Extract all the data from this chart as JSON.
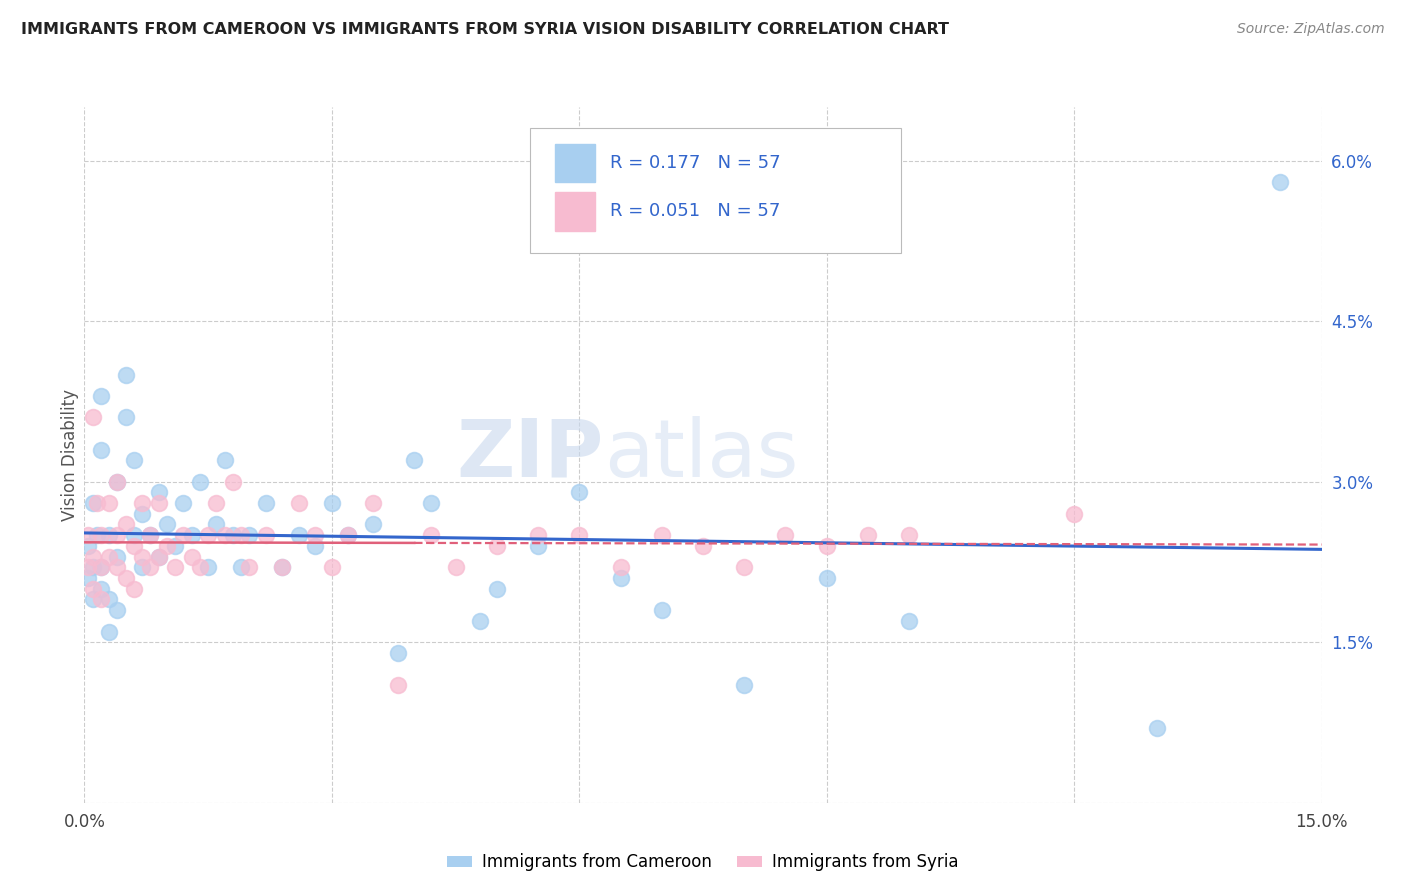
{
  "title": "IMMIGRANTS FROM CAMEROON VS IMMIGRANTS FROM SYRIA VISION DISABILITY CORRELATION CHART",
  "source": "Source: ZipAtlas.com",
  "ylabel": "Vision Disability",
  "xlim": [
    0.0,
    0.15
  ],
  "ylim": [
    0.0,
    0.065
  ],
  "xticks": [
    0.0,
    0.03,
    0.06,
    0.09,
    0.12,
    0.15
  ],
  "xticklabels": [
    "0.0%",
    "",
    "",
    "",
    "",
    "15.0%"
  ],
  "yticks": [
    0.0,
    0.015,
    0.03,
    0.045,
    0.06
  ],
  "yticklabels": [
    "",
    "1.5%",
    "3.0%",
    "4.5%",
    "6.0%"
  ],
  "r_cameroon": 0.177,
  "r_syria": 0.051,
  "n_cameroon": 57,
  "n_syria": 57,
  "color_cameroon": "#A8CFF0",
  "color_syria": "#F7BBD0",
  "line_color_cameroon": "#3366CC",
  "line_color_syria": "#E0607A",
  "grid_color": "#CCCCCC",
  "background_color": "#FFFFFF",
  "watermark": "ZIPatlas",
  "legend_label_cameroon": "Immigrants from Cameroon",
  "legend_label_syria": "Immigrants from Syria",
  "cameroon_x": [
    0.0005,
    0.0005,
    0.001,
    0.001,
    0.001,
    0.0015,
    0.002,
    0.002,
    0.002,
    0.002,
    0.003,
    0.003,
    0.003,
    0.004,
    0.004,
    0.004,
    0.005,
    0.005,
    0.006,
    0.006,
    0.007,
    0.007,
    0.008,
    0.009,
    0.009,
    0.01,
    0.011,
    0.012,
    0.013,
    0.014,
    0.015,
    0.016,
    0.017,
    0.018,
    0.019,
    0.02,
    0.022,
    0.024,
    0.026,
    0.028,
    0.03,
    0.032,
    0.035,
    0.038,
    0.04,
    0.042,
    0.048,
    0.05,
    0.055,
    0.06,
    0.065,
    0.07,
    0.08,
    0.09,
    0.1,
    0.13,
    0.145
  ],
  "cameroon_y": [
    0.024,
    0.021,
    0.028,
    0.022,
    0.019,
    0.025,
    0.038,
    0.033,
    0.022,
    0.02,
    0.025,
    0.019,
    0.016,
    0.03,
    0.023,
    0.018,
    0.04,
    0.036,
    0.032,
    0.025,
    0.027,
    0.022,
    0.025,
    0.029,
    0.023,
    0.026,
    0.024,
    0.028,
    0.025,
    0.03,
    0.022,
    0.026,
    0.032,
    0.025,
    0.022,
    0.025,
    0.028,
    0.022,
    0.025,
    0.024,
    0.028,
    0.025,
    0.026,
    0.014,
    0.032,
    0.028,
    0.017,
    0.02,
    0.024,
    0.029,
    0.021,
    0.018,
    0.011,
    0.021,
    0.017,
    0.007,
    0.058
  ],
  "syria_x": [
    0.0005,
    0.0005,
    0.001,
    0.001,
    0.001,
    0.0015,
    0.002,
    0.002,
    0.002,
    0.003,
    0.003,
    0.004,
    0.004,
    0.004,
    0.005,
    0.005,
    0.006,
    0.006,
    0.007,
    0.007,
    0.008,
    0.008,
    0.009,
    0.009,
    0.01,
    0.011,
    0.012,
    0.013,
    0.014,
    0.015,
    0.016,
    0.017,
    0.018,
    0.019,
    0.02,
    0.022,
    0.024,
    0.026,
    0.028,
    0.03,
    0.032,
    0.035,
    0.038,
    0.042,
    0.045,
    0.05,
    0.055,
    0.06,
    0.065,
    0.07,
    0.075,
    0.08,
    0.085,
    0.09,
    0.095,
    0.1,
    0.12
  ],
  "syria_y": [
    0.025,
    0.022,
    0.036,
    0.023,
    0.02,
    0.028,
    0.025,
    0.022,
    0.019,
    0.028,
    0.023,
    0.03,
    0.025,
    0.022,
    0.026,
    0.021,
    0.024,
    0.02,
    0.028,
    0.023,
    0.025,
    0.022,
    0.028,
    0.023,
    0.024,
    0.022,
    0.025,
    0.023,
    0.022,
    0.025,
    0.028,
    0.025,
    0.03,
    0.025,
    0.022,
    0.025,
    0.022,
    0.028,
    0.025,
    0.022,
    0.025,
    0.028,
    0.011,
    0.025,
    0.022,
    0.024,
    0.025,
    0.025,
    0.022,
    0.025,
    0.024,
    0.022,
    0.025,
    0.024,
    0.025,
    0.025,
    0.027
  ]
}
